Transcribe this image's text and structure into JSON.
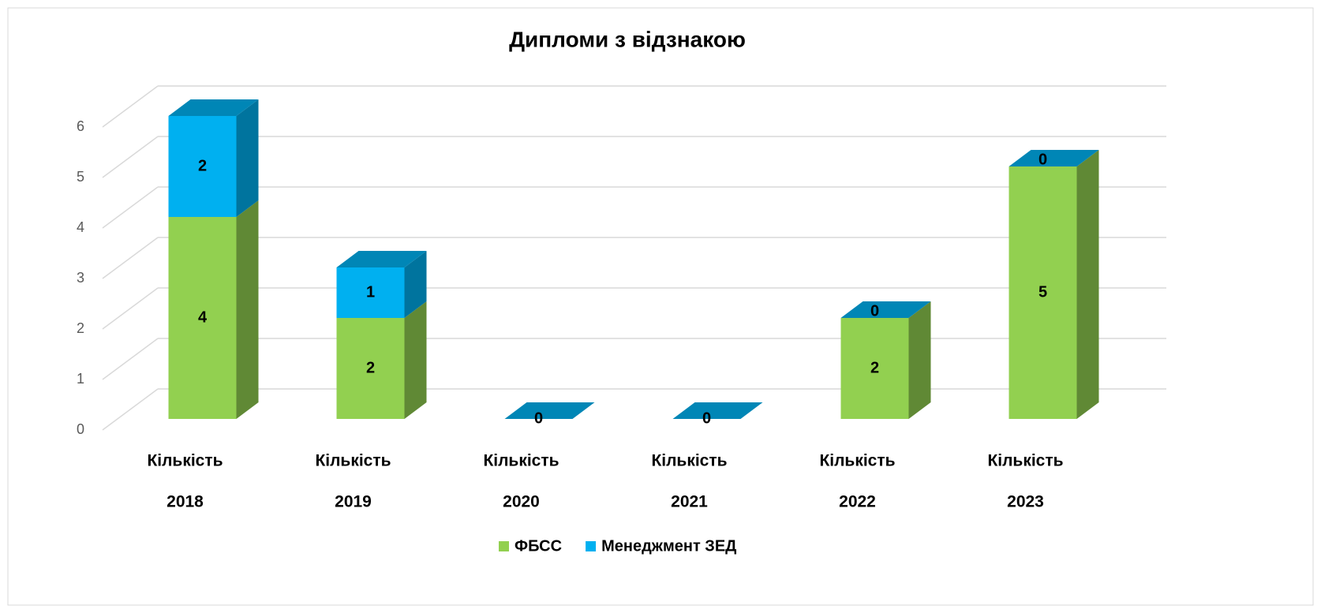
{
  "chart_data": {
    "type": "bar3d_stacked",
    "title": "Дипломи з відзнакою",
    "categories": [
      [
        "Кількість",
        "2018"
      ],
      [
        "Кількість",
        "2019"
      ],
      [
        "Кількість",
        "2020"
      ],
      [
        "Кількість",
        "2021"
      ],
      [
        "Кількість",
        "2022"
      ],
      [
        "Кількість",
        "2023"
      ]
    ],
    "series": [
      {
        "name": "ФБСС",
        "color": "#92d050",
        "values": [
          4,
          2,
          0,
          0,
          2,
          5
        ]
      },
      {
        "name": "Менеджмент ЗЕД",
        "color": "#00b0f0",
        "values": [
          2,
          1,
          0,
          0,
          0,
          0
        ]
      }
    ],
    "ylim": [
      0,
      6
    ],
    "yticks": [
      0,
      1,
      2,
      3,
      4,
      5,
      6
    ],
    "grid": true,
    "legend": "bottom"
  }
}
